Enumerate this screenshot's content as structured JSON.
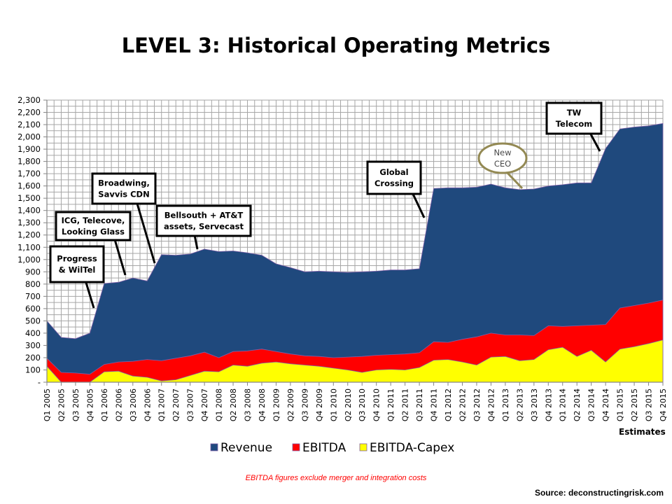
{
  "chart_data": {
    "type": "area",
    "title": "LEVEL 3: Historical Operating Metrics",
    "xlabel": "",
    "ylabel": "",
    "ylim": [
      0,
      2300
    ],
    "yticks": [
      0,
      100,
      200,
      300,
      400,
      500,
      600,
      700,
      800,
      900,
      1000,
      1100,
      1200,
      1300,
      1400,
      1500,
      1600,
      1700,
      1800,
      1900,
      2000,
      2100,
      2200,
      2300
    ],
    "ytick_labels": [
      "-",
      "100",
      "200",
      "300",
      "400",
      "500",
      "600",
      "700",
      "800",
      "900",
      "1,000",
      "1,100",
      "1,200",
      "1,300",
      "1,400",
      "1,500",
      "1,600",
      "1,700",
      "1,800",
      "1,900",
      "2,000",
      "2,100",
      "2,200",
      "2,300"
    ],
    "grid": true,
    "categories": [
      "Q1 2005",
      "Q2 2005",
      "Q3 2005",
      "Q4 2005",
      "Q1 2006",
      "Q2 2006",
      "Q3 2006",
      "Q4 2006",
      "Q1 2007",
      "Q2 2007",
      "Q3 2007",
      "Q4 2007",
      "Q1 2008",
      "Q2 2008",
      "Q3 2008",
      "Q4 2008",
      "Q1 2009",
      "Q2 2009",
      "Q3 2009",
      "Q4 2009",
      "Q1 2010",
      "Q2 2010",
      "Q3 2010",
      "Q4 2010",
      "Q1 2011",
      "Q2 2011",
      "Q3 2011",
      "Q4 2011",
      "Q1 2012",
      "Q2 2012",
      "Q3 2012",
      "Q4 2012",
      "Q1 2013",
      "Q2 2013",
      "Q3 2013",
      "Q4 2013",
      "Q1 2014",
      "Q2 2014",
      "Q3 2014",
      "Q4 2014",
      "Q1 2015",
      "Q2 2015",
      "Q3 2015",
      "Q4 2015"
    ],
    "series": [
      {
        "name": "Revenue",
        "color": "#1f497d",
        "values": [
          500,
          365,
          355,
          400,
          805,
          815,
          850,
          825,
          1040,
          1035,
          1045,
          1085,
          1065,
          1070,
          1055,
          1035,
          965,
          935,
          900,
          905,
          900,
          895,
          900,
          905,
          915,
          915,
          925,
          1580,
          1585,
          1585,
          1590,
          1615,
          1585,
          1570,
          1575,
          1600,
          1610,
          1625,
          1625,
          1905,
          2065,
          2080,
          2090,
          2110
        ]
      },
      {
        "name": "EBITDA",
        "color": "#ff0000",
        "values": [
          195,
          80,
          75,
          65,
          145,
          165,
          170,
          185,
          175,
          195,
          215,
          245,
          200,
          250,
          255,
          270,
          250,
          230,
          215,
          210,
          200,
          205,
          210,
          220,
          225,
          230,
          240,
          330,
          325,
          350,
          370,
          400,
          385,
          385,
          380,
          460,
          455,
          460,
          465,
          470,
          605,
          625,
          645,
          670
        ]
      },
      {
        "name": "EBITDA-Capex",
        "color": "#ffff00",
        "values": [
          130,
          0,
          0,
          0,
          85,
          90,
          50,
          40,
          10,
          20,
          55,
          90,
          85,
          140,
          130,
          155,
          165,
          150,
          140,
          130,
          115,
          100,
          80,
          100,
          105,
          100,
          120,
          180,
          185,
          165,
          140,
          205,
          210,
          175,
          185,
          265,
          285,
          210,
          260,
          165,
          270,
          290,
          315,
          345
        ]
      }
    ],
    "legend": {
      "position": "bottom",
      "entries": [
        "Revenue",
        "EBITDA",
        "EBITDA-Capex"
      ]
    },
    "annotations": [
      {
        "label_lines": [
          "Progress",
          "& WilTel"
        ],
        "target": "Q4 2005",
        "style": "box"
      },
      {
        "label_lines": [
          "ICG, Telecove,",
          "Looking Glass"
        ],
        "target": "Q3 2006",
        "style": "box"
      },
      {
        "label_lines": [
          "Broadwing,",
          "Savvis CDN"
        ],
        "target": "Q4 2006",
        "style": "box"
      },
      {
        "label_lines": [
          "Bellsouth + AT&T",
          "assets, Servecast"
        ],
        "target": "Q4 2007",
        "style": "box"
      },
      {
        "label_lines": [
          "Global",
          "Crossing"
        ],
        "target": "Q3 2011",
        "style": "box"
      },
      {
        "label_lines": [
          "New",
          "CEO"
        ],
        "target": "Q2 2013",
        "style": "ellipse"
      },
      {
        "label_lines": [
          "TW",
          "Telecom"
        ],
        "target": "Q4 2014",
        "style": "box"
      }
    ],
    "estimates_label": "Estimates",
    "note": "EBITDA figures exclude merger and integration costs",
    "source": "Source: deconstructingrisk.com"
  }
}
